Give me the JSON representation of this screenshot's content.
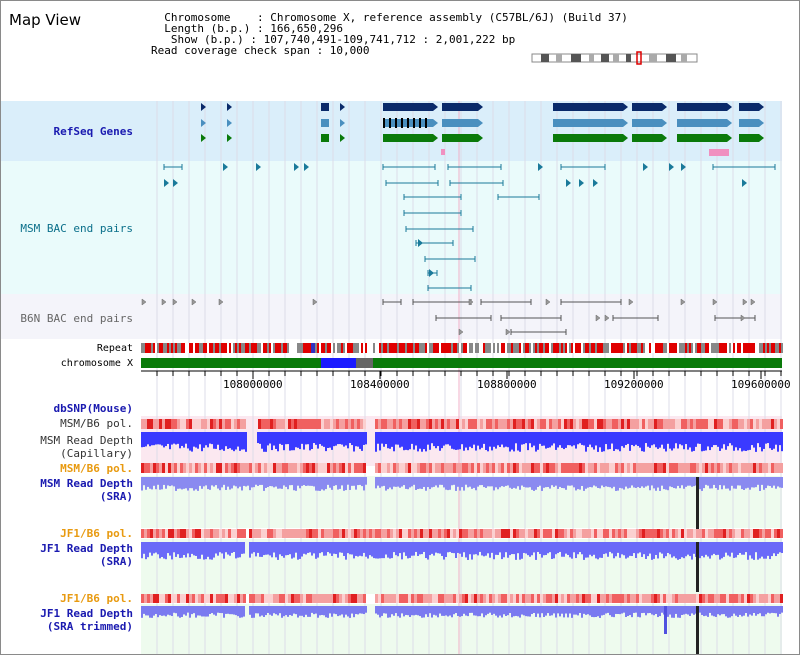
{
  "title": "Map View",
  "info": {
    "line1": "  Chromosome    : Chromosome X, reference assembly (C57BL/6J) (Build 37)",
    "line2": "  Length (b.p.) : 166,650,296",
    "line3": "   Show (b.p.) : 107,740,491-109,741,712 : 2,001,222 bp",
    "line4": "Read coverage check span : 10,000"
  },
  "tracks": {
    "refseq": "RefSeq Genes",
    "msm_bac": "MSM BAC end pairs",
    "b6n_bac": "B6N BAC end pairs",
    "repeat": "Repeat",
    "chromosome": "chromosome X",
    "dbsnp": "dbSNP(Mouse)",
    "msm_b6_pol1": "MSM/B6 pol.",
    "msm_depth_cap1": "MSM Read Depth",
    "msm_depth_cap2": "(Capillary)",
    "msm_b6_pol2": "MSM/B6 pol.",
    "msm_depth_sra1": "MSM Read Depth",
    "msm_depth_sra2": "(SRA)",
    "jf1_b6_pol1": "JF1/B6 pol.",
    "jf1_depth_sra1": "JF1 Read Depth",
    "jf1_depth_sra2": "(SRA)",
    "jf1_b6_pol2": "JF1/B6 pol.",
    "jf1_depth_trim1": "JF1 Read Depth",
    "jf1_depth_trim2": "(SRA trimmed)"
  },
  "axis_ticks": [
    "108000000",
    "108400000",
    "108800000",
    "109200000",
    "109600000"
  ],
  "colors": {
    "refseq_bg": "#daeefa",
    "bac_bg": "#eafbfb",
    "gene_dark": "#0a2a6a",
    "gene_mid": "#4a8fbf",
    "gene_green": "#0a7a0a",
    "chromosome_green": "#0a7a0a",
    "chromosome_blue": "#1a1aff",
    "repeat_red": "#e00000",
    "depth_blue": "#3a3aff",
    "pol_red": "#f08080"
  }
}
